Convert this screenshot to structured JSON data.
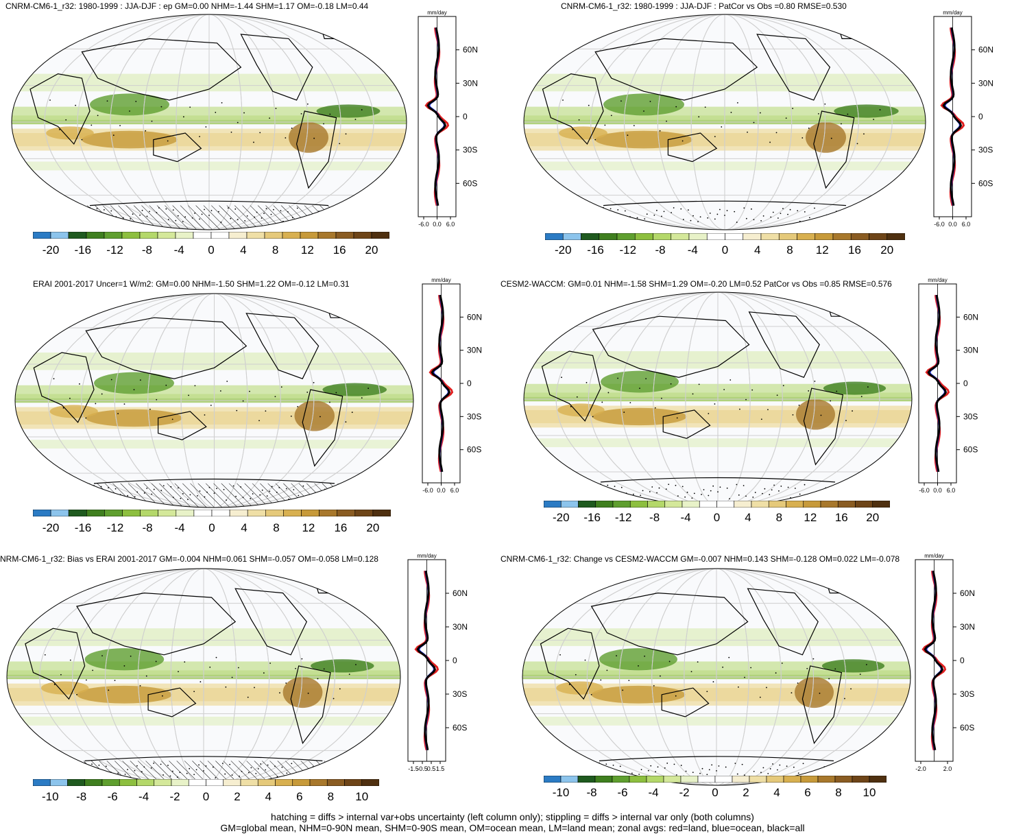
{
  "panels": [
    {
      "title": "CNRM-CM6-1_r32: 1980-1999 : JJA-DJF : ep GM=0.00 NHM=-1.44 SHM=1.17 OM=-0.18 LM=0.44",
      "units": "mm/day",
      "zonal_ticks": [
        "-6.0",
        "0.0",
        "6.0"
      ],
      "lat_ticks": [
        "60N",
        "30N",
        "0",
        "30S",
        "60S"
      ],
      "colorbar": [
        "-20",
        "-16",
        "-12",
        "-8",
        "-4",
        "0",
        "4",
        "8",
        "12",
        "16",
        "20"
      ],
      "hatching": true
    },
    {
      "title": "CNRM-CM6-1_r32: 1980-1999 : JJA-DJF : PatCor vs Obs =0.80 RMSE=0.530",
      "units": "mm/day",
      "zonal_ticks": [
        "-6.0",
        "0.0",
        "6.0"
      ],
      "lat_ticks": [
        "60N",
        "30N",
        "0",
        "30S",
        "60S"
      ],
      "colorbar": [
        "-20",
        "-16",
        "-12",
        "-8",
        "-4",
        "0",
        "4",
        "8",
        "12",
        "16",
        "20"
      ],
      "hatching": false
    },
    {
      "title": "ERAI 2001-2017 Uncer=1 W/m2: GM=0.00 NHM=-1.50 SHM=1.22 OM=-0.12 LM=0.31",
      "units": "mm/day",
      "zonal_ticks": [
        "-6.0",
        "0.0",
        "6.0"
      ],
      "lat_ticks": [
        "60N",
        "30N",
        "0",
        "30S",
        "60S"
      ],
      "colorbar": [
        "-20",
        "-16",
        "-12",
        "-8",
        "-4",
        "0",
        "4",
        "8",
        "12",
        "16",
        "20"
      ],
      "hatching": true
    },
    {
      "title": "CESM2-WACCM: GM=0.01 NHM=-1.58 SHM=1.29 OM=-0.20 LM=0.52 PatCor vs Obs =0.85 RMSE=0.576",
      "units": "mm/day",
      "zonal_ticks": [
        "-6.0",
        "0.0",
        "6.0"
      ],
      "lat_ticks": [
        "60N",
        "30N",
        "0",
        "30S",
        "60S"
      ],
      "colorbar": [
        "-20",
        "-16",
        "-12",
        "-8",
        "-4",
        "0",
        "4",
        "8",
        "12",
        "16",
        "20"
      ],
      "hatching": false
    },
    {
      "title": "NRM-CM6-1_r32: Bias vs ERAI 2001-2017 GM=-0.004 NHM=0.061 SHM=-0.057 OM=-0.058 LM=0.128",
      "units": "mm/day",
      "zonal_ticks": [
        "-1.5",
        "-0.5",
        "0.5",
        "1.5"
      ],
      "lat_ticks": [
        "60N",
        "30N",
        "0",
        "30S",
        "60S"
      ],
      "colorbar": [
        "-10",
        "-8",
        "-6",
        "-4",
        "-2",
        "0",
        "2",
        "4",
        "6",
        "8",
        "10"
      ],
      "hatching": true
    },
    {
      "title": "CNRM-CM6-1_r32: Change vs CESM2-WACCM GM=-0.007 NHM=0.143 SHM=-0.128 OM=0.022 LM=-0.078",
      "units": "mm/day",
      "zonal_ticks": [
        "-2.0",
        "2.0"
      ],
      "lat_ticks": [
        "60N",
        "30N",
        "0",
        "30S",
        "60S"
      ],
      "colorbar": [
        "-10",
        "-8",
        "-6",
        "-4",
        "-2",
        "0",
        "2",
        "4",
        "6",
        "8",
        "10"
      ],
      "hatching": false
    }
  ],
  "colorbar_colors": [
    "#2b7bc4",
    "#8cc4ec",
    "#1f5a1f",
    "#3f7f1f",
    "#5f9f2f",
    "#8dbf3f",
    "#b4d86a",
    "#d4e89a",
    "#e8f2c8",
    "#ffffff",
    "#ffffff",
    "#f6eed0",
    "#efdfa6",
    "#e5c97a",
    "#d8b050",
    "#c79a3a",
    "#a8782c",
    "#8a5c22",
    "#6e4518",
    "#4f3010"
  ],
  "footer": {
    "line1": "hatching = diffs > internal var+obs uncertainty (left column only); stippling = diffs > internal var only (both columns)",
    "line2": "GM=global mean, NHM=0-90N mean, SHM=0-90S mean, OM=ocean mean, LM=land mean; zonal avgs: red=land, blue=ocean, black=all"
  }
}
